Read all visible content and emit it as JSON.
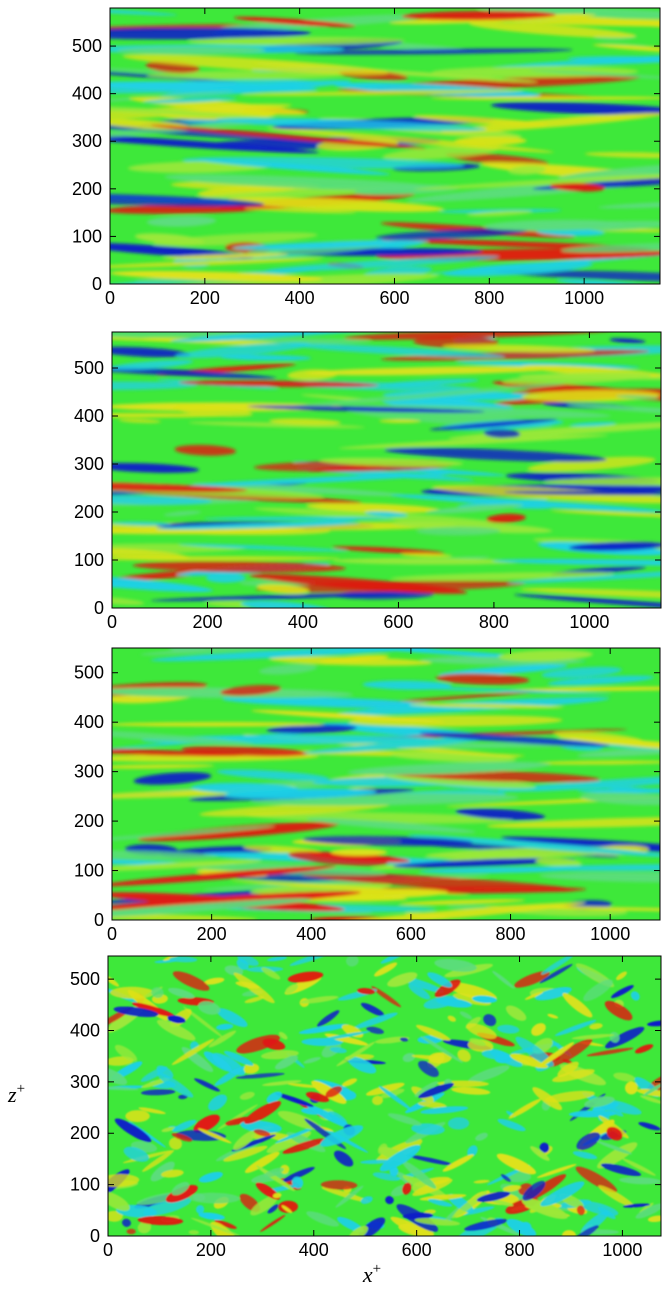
{
  "chart_data": [
    {
      "type": "heatmap",
      "panel": 1,
      "xlabel": "",
      "ylabel": "",
      "xlim": [
        0,
        1160
      ],
      "ylim": [
        0,
        580
      ],
      "x_ticks": [
        "0",
        "200",
        "400",
        "600",
        "800",
        "1000"
      ],
      "y_ticks": [
        "0",
        "100",
        "200",
        "300",
        "400",
        "500"
      ],
      "colormap": [
        "#0a1fc8",
        "#1fd0e6",
        "#3ee83a",
        "#dde21a",
        "#e01a12"
      ],
      "background_value_color": "#3ee83a"
    },
    {
      "type": "heatmap",
      "panel": 2,
      "xlabel": "",
      "ylabel": "",
      "xlim": [
        0,
        1150
      ],
      "ylim": [
        0,
        575
      ],
      "x_ticks": [
        "0",
        "200",
        "400",
        "600",
        "800",
        "1000"
      ],
      "y_ticks": [
        "0",
        "100",
        "200",
        "300",
        "400",
        "500"
      ],
      "colormap": [
        "#0a1fc8",
        "#1fd0e6",
        "#3ee83a",
        "#dde21a",
        "#e01a12"
      ],
      "background_value_color": "#3ee83a"
    },
    {
      "type": "heatmap",
      "panel": 3,
      "xlabel": "",
      "ylabel": "",
      "xlim": [
        0,
        1100
      ],
      "ylim": [
        0,
        550
      ],
      "x_ticks": [
        "0",
        "200",
        "400",
        "600",
        "800",
        "1000"
      ],
      "y_ticks": [
        "0",
        "100",
        "200",
        "300",
        "400",
        "500"
      ],
      "colormap": [
        "#0a1fc8",
        "#1fd0e6",
        "#3ee83a",
        "#dde21a",
        "#e01a12"
      ],
      "background_value_color": "#3ee83a"
    },
    {
      "type": "heatmap",
      "panel": 4,
      "xlabel": "x",
      "xlabel_sup": "+",
      "ylabel": "z",
      "ylabel_sup": "+",
      "xlim": [
        0,
        1075
      ],
      "ylim": [
        0,
        545
      ],
      "x_ticks": [
        "0",
        "200",
        "400",
        "600",
        "800",
        "1000"
      ],
      "y_ticks": [
        "0",
        "100",
        "200",
        "300",
        "400",
        "500"
      ],
      "colormap": [
        "#0a1fc8",
        "#1fd0e6",
        "#3ee83a",
        "#dde21a",
        "#e01a12"
      ],
      "background_value_color": "#3ee83a"
    }
  ]
}
